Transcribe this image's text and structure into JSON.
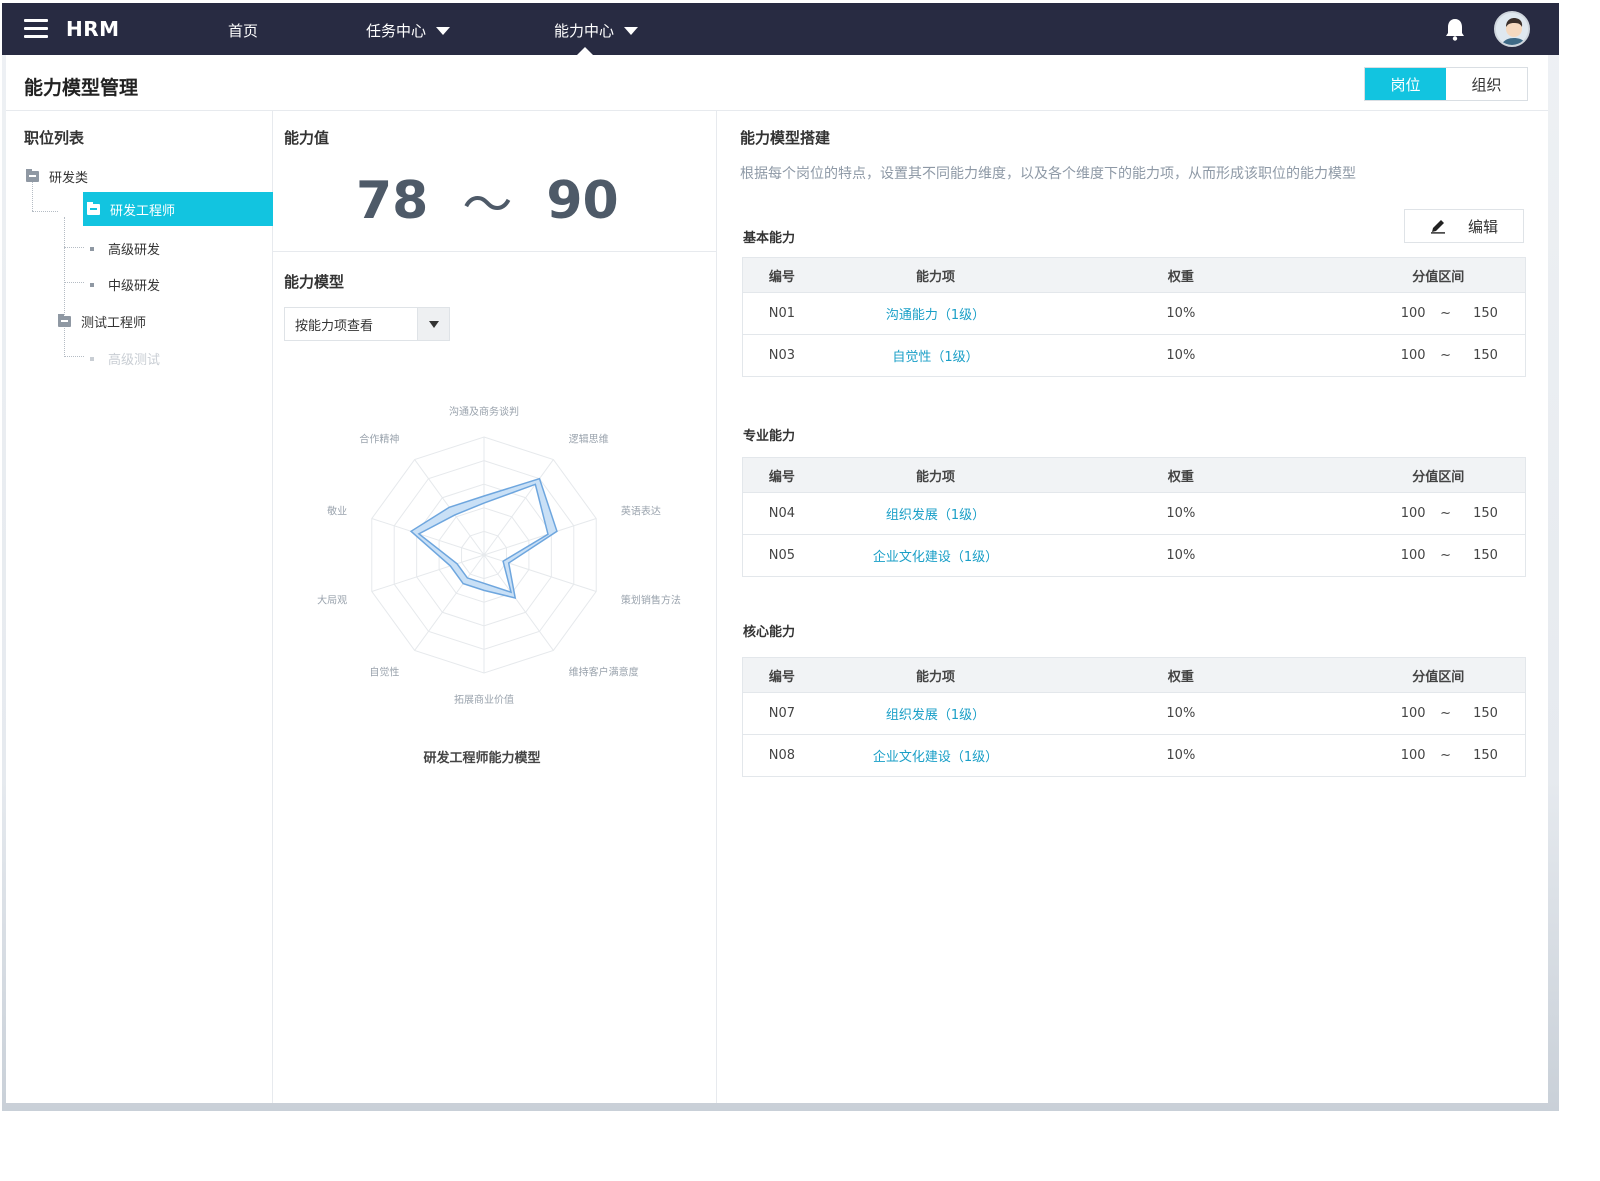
{
  "nav": {
    "brand": "HRM",
    "items": [
      {
        "label": "首页"
      },
      {
        "label": "任务中心"
      },
      {
        "label": "能力中心"
      }
    ]
  },
  "page": {
    "title": "能力模型管理",
    "toggle": {
      "active": "岗位",
      "inactive": "组织"
    }
  },
  "tree": {
    "heading": "职位列表",
    "nodes": [
      {
        "label": "研发类"
      },
      {
        "label": "研发工程师"
      },
      {
        "label": "高级研发"
      },
      {
        "label": "中级研发"
      },
      {
        "label": "测试工程师"
      },
      {
        "label": "高级测试"
      }
    ]
  },
  "ability_value": {
    "heading": "能力值",
    "min": "78",
    "tilde": "～",
    "max": "90"
  },
  "ability_model": {
    "heading": "能力模型",
    "select_value": "按能力项查看",
    "chart_title": "研发工程师能力模型"
  },
  "chart_data": {
    "type": "radar",
    "title": "研发工程师能力模型",
    "axes": [
      "沟通及商务谈判",
      "逻辑思维",
      "英语表达",
      "策划销售方法",
      "维持客户满意度",
      "拓展商业价值",
      "自觉性",
      "大局观",
      "敬业",
      "合作精神"
    ],
    "range": [
      0,
      100
    ],
    "rings": 5,
    "series": [
      {
        "outer": [
          50,
          80,
          65,
          22,
          45,
          30,
          30,
          30,
          65,
          50
        ],
        "inner": [
          44,
          74,
          57,
          17,
          39,
          24,
          24,
          24,
          58,
          42
        ]
      }
    ],
    "colors": {
      "fill": "#c9e0f6",
      "stroke": "#6ea6de",
      "grid": "#e6e9ec"
    }
  },
  "builder": {
    "heading": "能力模型搭建",
    "description": "根据每个岗位的特点，设置其不同能力维度，以及各个维度下的能力项，从而形成该职位的能力模型",
    "edit_label": "编辑",
    "columns": [
      "编号",
      "能力项",
      "权重",
      "分值区间"
    ],
    "tilde": "~",
    "groups": [
      {
        "label": "基本能力",
        "rows": [
          {
            "id": "N01",
            "item": "沟通能力（1级）",
            "weight": "10%",
            "min": "100",
            "max": "150"
          },
          {
            "id": "N03",
            "item": "自觉性（1级）",
            "weight": "10%",
            "min": "100",
            "max": "150"
          }
        ]
      },
      {
        "label": "专业能力",
        "rows": [
          {
            "id": "N04",
            "item": "组织发展（1级）",
            "weight": "10%",
            "min": "100",
            "max": "150"
          },
          {
            "id": "N05",
            "item": "企业文化建设（1级）",
            "weight": "10%",
            "min": "100",
            "max": "150"
          }
        ]
      },
      {
        "label": "核心能力",
        "rows": [
          {
            "id": "N07",
            "item": "组织发展（1级）",
            "weight": "10%",
            "min": "100",
            "max": "150"
          },
          {
            "id": "N08",
            "item": "企业文化建设（1级）",
            "weight": "10%",
            "min": "100",
            "max": "150"
          }
        ]
      }
    ]
  },
  "colors": {
    "nav_bg": "#282b42",
    "accent": "#12c4e0",
    "link": "#1a9fc7"
  }
}
